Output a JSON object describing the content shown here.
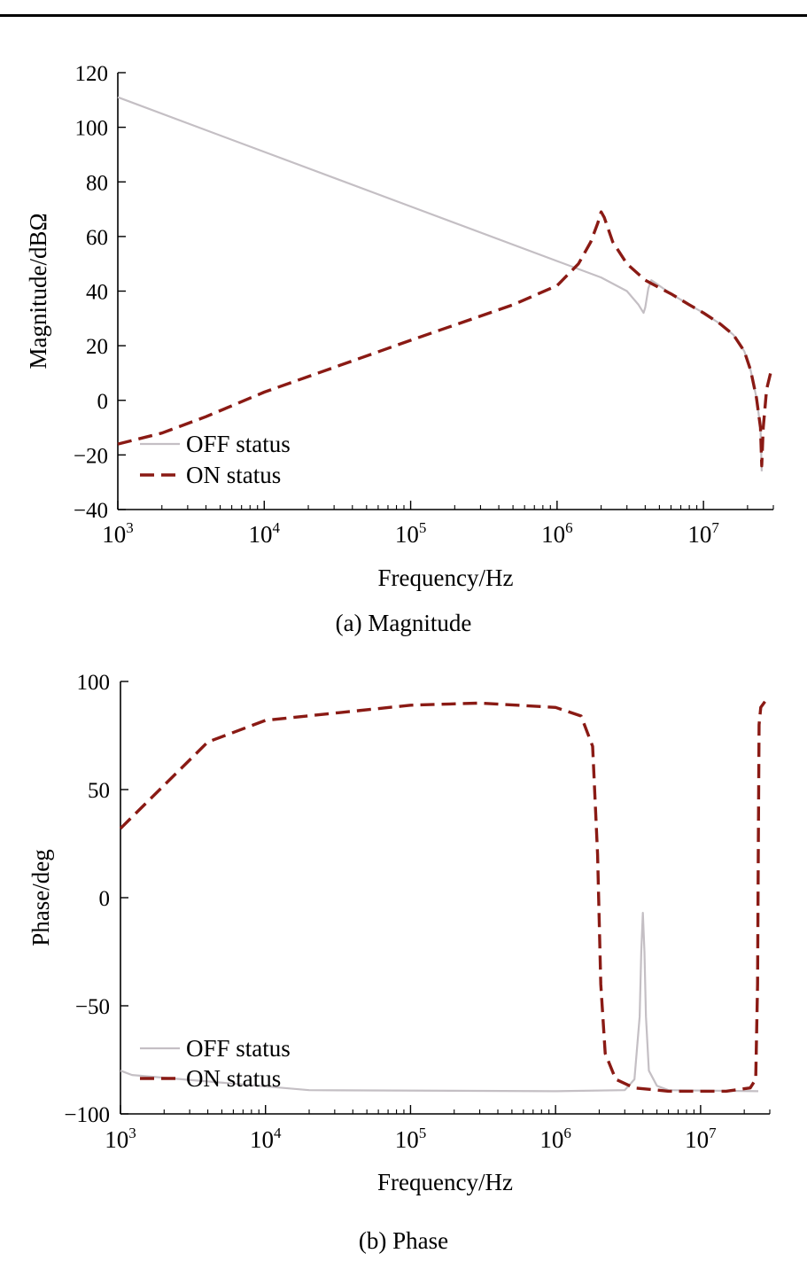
{
  "figure": {
    "caption_a": "(a) Magnitude",
    "caption_b": "(b) Phase"
  },
  "colors": {
    "off": "#c4bfc4",
    "on": "#8a1a14",
    "axis": "#000000"
  },
  "chart_data": [
    {
      "type": "line",
      "title": "",
      "xlabel": "Frequency/Hz",
      "ylabel": "Magnitude/dBΩ",
      "x_scale": "log",
      "xlim": [
        1000,
        30000000
      ],
      "ylim": [
        -40,
        120
      ],
      "x_ticks": [
        1000,
        10000,
        100000,
        1000000,
        10000000
      ],
      "x_tick_exponents": [
        "3",
        "4",
        "5",
        "6",
        "7"
      ],
      "y_ticks": [
        -40,
        -20,
        0,
        20,
        40,
        60,
        80,
        100,
        120
      ],
      "y_tick_labels": [
        "−40",
        "−20",
        "0",
        "20",
        "40",
        "60",
        "80",
        "100",
        "120"
      ],
      "legend": {
        "position": "bottom-left"
      },
      "grid": false,
      "series": [
        {
          "name": "OFF status",
          "style": "solid",
          "color": "#c4bfc4",
          "points": [
            [
              1000,
              111
            ],
            [
              10000,
              91
            ],
            [
              100000,
              71
            ],
            [
              1000000,
              51
            ],
            [
              2000000,
              45
            ],
            [
              3000000,
              40
            ],
            [
              3600000,
              35
            ],
            [
              3900000,
              32
            ],
            [
              4000000,
              34
            ],
            [
              4200000,
              41
            ],
            [
              4400000,
              44
            ],
            [
              4700000,
              43
            ],
            [
              6000000,
              39
            ],
            [
              8000000,
              35
            ],
            [
              10000000,
              32
            ],
            [
              13000000,
              28
            ],
            [
              16000000,
              24
            ],
            [
              19000000,
              18
            ],
            [
              21000000,
              11
            ],
            [
              23000000,
              1
            ],
            [
              24500000,
              -10
            ],
            [
              25000000,
              -26
            ]
          ]
        },
        {
          "name": "ON status",
          "style": "dashed",
          "color": "#8a1a14",
          "points": [
            [
              1000,
              -16
            ],
            [
              2000,
              -12
            ],
            [
              4000,
              -6
            ],
            [
              10000,
              3
            ],
            [
              100000,
              22
            ],
            [
              500000,
              35
            ],
            [
              1000000,
              42
            ],
            [
              1400000,
              50
            ],
            [
              1700000,
              58
            ],
            [
              1900000,
              65
            ],
            [
              2000000,
              69
            ],
            [
              2100000,
              67
            ],
            [
              2400000,
              58
            ],
            [
              3000000,
              50
            ],
            [
              4000000,
              44
            ],
            [
              6000000,
              39
            ],
            [
              8000000,
              35
            ],
            [
              10000000,
              32
            ],
            [
              13000000,
              28
            ],
            [
              16000000,
              24
            ],
            [
              19000000,
              18
            ],
            [
              21000000,
              11
            ],
            [
              23000000,
              1
            ],
            [
              24500000,
              -10
            ],
            [
              25000000,
              -24
            ],
            [
              25600000,
              -10
            ],
            [
              27000000,
              4
            ],
            [
              29000000,
              11
            ],
            [
              30000000,
              12
            ]
          ]
        }
      ]
    },
    {
      "type": "line",
      "title": "",
      "xlabel": "Frequency/Hz",
      "ylabel": "Phase/deg",
      "x_scale": "log",
      "xlim": [
        1000,
        30000000
      ],
      "ylim": [
        -100,
        100
      ],
      "x_ticks": [
        1000,
        10000,
        100000,
        1000000,
        10000000
      ],
      "x_tick_exponents": [
        "3",
        "4",
        "5",
        "6",
        "7"
      ],
      "y_ticks": [
        -100,
        -50,
        0,
        50,
        100
      ],
      "y_tick_labels": [
        "−100",
        "−50",
        "0",
        "50",
        "100"
      ],
      "legend": {
        "position": "bottom-left"
      },
      "grid": false,
      "series": [
        {
          "name": "OFF status",
          "style": "solid",
          "color": "#c4bfc4",
          "points": [
            [
              1000,
              -80
            ],
            [
              1200,
              -82
            ],
            [
              20000,
              -89
            ],
            [
              1000000,
              -89.5
            ],
            [
              3000000,
              -89
            ],
            [
              3500000,
              -84
            ],
            [
              3800000,
              -55
            ],
            [
              3900000,
              -25
            ],
            [
              4000000,
              -7
            ],
            [
              4100000,
              -25
            ],
            [
              4200000,
              -55
            ],
            [
              4400000,
              -80
            ],
            [
              5000000,
              -87
            ],
            [
              6000000,
              -89
            ],
            [
              25000000,
              -89.5
            ]
          ]
        },
        {
          "name": "ON status",
          "style": "dashed",
          "color": "#8a1a14",
          "points": [
            [
              1000,
              32
            ],
            [
              2000,
              52
            ],
            [
              4000,
              72
            ],
            [
              10000,
              82
            ],
            [
              100000,
              89
            ],
            [
              300000,
              90
            ],
            [
              1000000,
              88
            ],
            [
              1500000,
              84
            ],
            [
              1800000,
              70
            ],
            [
              1950000,
              20
            ],
            [
              2050000,
              -40
            ],
            [
              2200000,
              -72
            ],
            [
              2600000,
              -84
            ],
            [
              3500000,
              -88
            ],
            [
              6000000,
              -89.5
            ],
            [
              15000000,
              -89.5
            ],
            [
              22000000,
              -88
            ],
            [
              24000000,
              -84
            ],
            [
              24700000,
              -40
            ],
            [
              25000000,
              20
            ],
            [
              25300000,
              80
            ],
            [
              26000000,
              88
            ],
            [
              28000000,
              91
            ]
          ]
        }
      ]
    }
  ]
}
